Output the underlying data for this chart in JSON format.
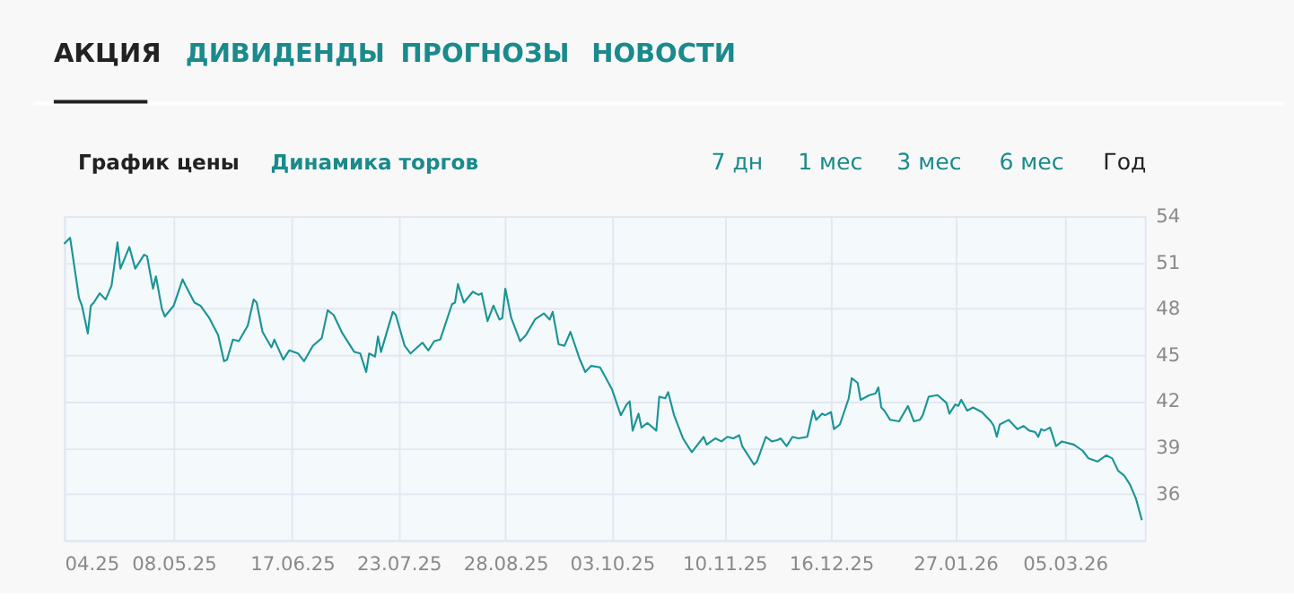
{
  "chart_data": {
    "type": "line",
    "annotations": [
      "АКЦИЯ",
      "ДИВИДЕНДЫ",
      "ПРОГНОЗЫ",
      "НОВОСТИ",
      "График цены",
      "Динамика торгов",
      "7 дн",
      "1 мес",
      "3 мес",
      "6 мес",
      "Год"
    ],
    "x": [
      "2025-04-01",
      "2025-04-03",
      "2025-04-06",
      "2025-04-07",
      "2025-04-09",
      "2025-04-10",
      "2025-04-11",
      "2025-04-13",
      "2025-04-15",
      "2025-04-17",
      "2025-04-19",
      "2025-04-20",
      "2025-04-23",
      "2025-04-25",
      "2025-04-28",
      "2025-04-29",
      "2025-05-01",
      "2025-05-02",
      "2025-05-04",
      "2025-05-05",
      "2025-05-08",
      "2025-05-11",
      "2025-05-12",
      "2025-05-15",
      "2025-05-17",
      "2025-05-20",
      "2025-05-23",
      "2025-05-25",
      "2025-05-26",
      "2025-05-28",
      "2025-05-30",
      "2025-06-02",
      "2025-06-04",
      "2025-06-05",
      "2025-06-07",
      "2025-06-10",
      "2025-06-11",
      "2025-06-14",
      "2025-06-16",
      "2025-06-19",
      "2025-06-21",
      "2025-06-24",
      "2025-06-27",
      "2025-06-29",
      "2025-07-01",
      "2025-07-04",
      "2025-07-08",
      "2025-07-10",
      "2025-07-12",
      "2025-07-13",
      "2025-07-15",
      "2025-07-16",
      "2025-07-17",
      "2025-07-21",
      "2025-07-22",
      "2025-07-25",
      "2025-07-27",
      "2025-07-31",
      "2025-08-02",
      "2025-08-04",
      "2025-08-06",
      "2025-08-10",
      "2025-08-11",
      "2025-08-12",
      "2025-08-14",
      "2025-08-17",
      "2025-08-19",
      "2025-08-20",
      "2025-08-22",
      "2025-08-24",
      "2025-08-26",
      "2025-08-27",
      "2025-08-28",
      "2025-08-30",
      "2025-09-02",
      "2025-09-04",
      "2025-09-07",
      "2025-09-10",
      "2025-09-12",
      "2025-09-13",
      "2025-09-15",
      "2025-09-17",
      "2025-09-19",
      "2025-09-22",
      "2025-09-24",
      "2025-09-26",
      "2025-09-29",
      "2025-10-03",
      "2025-10-06",
      "2025-10-08",
      "2025-10-09",
      "2025-10-10",
      "2025-10-12",
      "2025-10-13",
      "2025-10-15",
      "2025-10-18",
      "2025-10-19",
      "2025-10-21",
      "2025-10-22",
      "2025-10-24",
      "2025-10-27",
      "2025-10-30",
      "2025-11-03",
      "2025-11-04",
      "2025-11-07",
      "2025-11-09",
      "2025-11-11",
      "2025-11-13",
      "2025-11-15",
      "2025-11-16",
      "2025-11-20",
      "2025-11-21",
      "2025-11-24",
      "2025-11-26",
      "2025-11-28",
      "2025-11-29",
      "2025-12-01",
      "2025-12-03",
      "2025-12-05",
      "2025-12-08",
      "2025-12-10",
      "2025-12-11",
      "2025-12-13",
      "2025-12-14",
      "2025-12-16",
      "2025-12-17",
      "2025-12-19",
      "2025-12-22",
      "2025-12-23",
      "2025-12-25",
      "2025-12-26",
      "2025-12-29",
      "2025-12-31",
      "2026-01-01",
      "2026-01-02",
      "2026-01-03",
      "2026-01-05",
      "2026-01-08",
      "2026-01-11",
      "2026-01-13",
      "2026-01-15",
      "2026-01-16",
      "2026-01-18",
      "2026-01-21",
      "2026-01-24",
      "2026-01-25",
      "2026-01-27",
      "2026-01-28",
      "2026-01-29",
      "2026-01-31",
      "2026-02-02",
      "2026-02-05",
      "2026-02-08",
      "2026-02-09",
      "2026-02-10",
      "2026-02-11",
      "2026-02-14",
      "2026-02-17",
      "2026-02-19",
      "2026-02-21",
      "2026-02-23",
      "2026-02-24",
      "2026-02-25",
      "2026-02-26",
      "2026-02-28",
      "2026-03-02",
      "2026-03-04",
      "2026-03-08",
      "2026-03-11",
      "2026-03-13",
      "2026-03-16",
      "2026-03-19",
      "2026-03-21",
      "2026-03-23",
      "2026-03-25",
      "2026-03-27",
      "2026-03-29",
      "2026-03-31"
    ],
    "series": [
      {
        "color": "#1a9496",
        "values": [
          52.2,
          52.6,
          48.7,
          48.2,
          46.4,
          48.2,
          48.4,
          49.0,
          48.6,
          49.5,
          52.3,
          50.6,
          52.0,
          50.6,
          51.5,
          51.4,
          49.3,
          50.1,
          48.0,
          47.5,
          48.2,
          49.9,
          49.5,
          48.4,
          48.2,
          47.4,
          46.3,
          44.6,
          44.7,
          46.0,
          45.9,
          46.9,
          48.6,
          48.4,
          46.5,
          45.5,
          46.0,
          44.7,
          45.3,
          45.1,
          44.6,
          45.6,
          46.1,
          47.9,
          47.6,
          46.4,
          45.2,
          45.1,
          43.9,
          45.1,
          44.9,
          46.2,
          45.2,
          47.8,
          47.6,
          45.6,
          45.1,
          45.8,
          45.3,
          45.9,
          46.0,
          48.3,
          48.4,
          49.6,
          48.4,
          49.1,
          48.9,
          49.0,
          47.2,
          48.2,
          47.3,
          47.4,
          49.3,
          47.4,
          45.9,
          46.3,
          47.3,
          47.7,
          47.3,
          47.8,
          45.7,
          45.6,
          46.5,
          44.8,
          43.9,
          44.3,
          44.2,
          42.8,
          41.1,
          41.8,
          42.0,
          40.1,
          41.2,
          40.3,
          40.6,
          40.1,
          42.3,
          42.2,
          42.6,
          41.1,
          39.6,
          38.7,
          39.7,
          39.2,
          39.6,
          39.4,
          39.7,
          39.6,
          39.8,
          39.1,
          37.9,
          38.1,
          39.7,
          39.4,
          39.5,
          39.6,
          39.1,
          39.7,
          39.6,
          39.7,
          41.4,
          40.8,
          41.2,
          41.1,
          41.3,
          40.2,
          40.5,
          42.2,
          43.5,
          43.2,
          42.1,
          42.4,
          42.5,
          42.9,
          41.6,
          41.4,
          40.8,
          40.7,
          41.7,
          40.7,
          40.8,
          41.1,
          42.3,
          42.4,
          41.9,
          41.2,
          41.8,
          41.7,
          42.1,
          41.4,
          41.6,
          41.3,
          40.7,
          40.4,
          39.7,
          40.5,
          40.8,
          40.2,
          40.4,
          40.1,
          40.0,
          39.7,
          40.2,
          40.1,
          40.3,
          39.1,
          39.4,
          39.2,
          38.8,
          38.3,
          38.1,
          38.5,
          38.3,
          37.5,
          37.2,
          36.6,
          35.7,
          34.3
        ]
      }
    ],
    "xlim": [
      "2025-04-01",
      "2026-04-01"
    ],
    "xticks": [
      {
        "value": "2025-04-01",
        "label": "04.25"
      },
      {
        "value": "2025-05-08",
        "label": "08.05.25"
      },
      {
        "value": "2025-06-17",
        "label": "17.06.25"
      },
      {
        "value": "2025-07-23",
        "label": "23.07.25"
      },
      {
        "value": "2025-08-28",
        "label": "28.08.25"
      },
      {
        "value": "2025-10-03",
        "label": "03.10.25"
      },
      {
        "value": "2025-11-10",
        "label": "10.11.25"
      },
      {
        "value": "2025-12-16",
        "label": "16.12.25"
      },
      {
        "value": "2026-01-27",
        "label": "27.01.26"
      },
      {
        "value": "2026-03-05",
        "label": "05.03.26"
      }
    ],
    "ylim": [
      33,
      54
    ],
    "yticks": [
      {
        "value": 33,
        "label": null
      },
      36,
      39,
      42,
      45,
      48,
      51,
      54
    ],
    "grid": true,
    "marker": "none",
    "line_style": "solid"
  }
}
